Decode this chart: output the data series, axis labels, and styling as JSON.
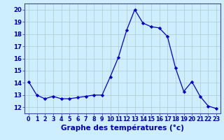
{
  "hours": [
    0,
    1,
    2,
    3,
    4,
    5,
    6,
    7,
    8,
    9,
    10,
    11,
    12,
    13,
    14,
    15,
    16,
    17,
    18,
    19,
    20,
    21,
    22,
    23
  ],
  "temps": [
    14.1,
    13.0,
    12.7,
    12.9,
    12.7,
    12.7,
    12.8,
    12.9,
    13.0,
    13.0,
    14.5,
    16.1,
    18.3,
    20.0,
    18.9,
    18.6,
    18.5,
    17.8,
    15.2,
    13.3,
    14.1,
    12.9,
    12.1,
    11.9
  ],
  "line_color": "#0000cc",
  "marker": "D",
  "marker_size": 2.2,
  "bg_color": "#cceeff",
  "grid_color": "#aacccc",
  "xlabel": "Graphe des températures (°c)",
  "xlabel_color": "#0000aa",
  "xlabel_fontsize": 7.5,
  "tick_color": "#0000aa",
  "tick_fontsize": 5.8,
  "ytick_fontsize": 6.2,
  "ylim": [
    11.5,
    20.5
  ],
  "yticks": [
    12,
    13,
    14,
    15,
    16,
    17,
    18,
    19,
    20
  ],
  "xlim": [
    -0.5,
    23.5
  ],
  "xticks": [
    0,
    1,
    2,
    3,
    4,
    5,
    6,
    7,
    8,
    9,
    10,
    11,
    12,
    13,
    14,
    15,
    16,
    17,
    18,
    19,
    20,
    21,
    22,
    23
  ],
  "spine_color": "#4444aa",
  "axis_bg": "#cceeff"
}
